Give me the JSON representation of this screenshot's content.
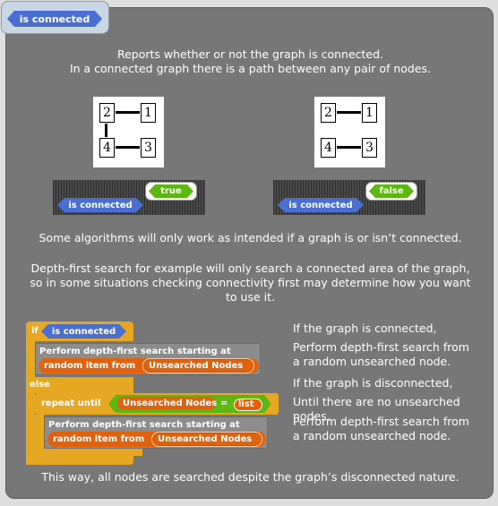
{
  "title_block": "is connected",
  "intro": {
    "line1": "Reports whether or not the graph is connected.",
    "line2": "In a connected graph there is a path between any pair of nodes."
  },
  "graph_left": {
    "n1": "1",
    "n2": "2",
    "n3": "3",
    "n4": "4"
  },
  "graph_right": {
    "n1": "1",
    "n2": "2",
    "n3": "3",
    "n4": "4"
  },
  "result_left": {
    "value": "true",
    "block": "is connected"
  },
  "result_right": {
    "value": "false",
    "block": "is connected"
  },
  "para1": "Some algorithms will only work as intended if a graph is or isn’t connected.",
  "para2": {
    "line1": "Depth-first search for example will only search a connected area of the graph,",
    "line2": "so in some situations checking connectivity first may determine how you want",
    "line3": "to use it."
  },
  "script": {
    "if_kw": "if",
    "cond": "is connected",
    "dfs1": "Perform depth-first search starting at",
    "random1": "random item from",
    "unsearched1": "Unsearched Nodes",
    "else_kw": "else",
    "repeat_kw": "repeat until",
    "unsearched_cmp": "Unsearched Nodes",
    "eq": "=",
    "list_kw": "list",
    "dfs2": "Perform depth-first search starting at",
    "random2": "random item from",
    "unsearched2": "Unsearched Nodes"
  },
  "notes": {
    "n1": "If the graph is connected,",
    "n2a": "Perform depth-first search from",
    "n2b": "a random unsearched node.",
    "n3": "If the graph is disconnected,",
    "n4": "Until there are no unsearched nodes,",
    "n5a": "Perform depth-first search from",
    "n5b": "a random unsearched node."
  },
  "closing": "This way, all nodes are searched despite the graph’s disconnected nature.",
  "colors": {
    "panel": "#777777",
    "predicate_blue": "#4a6fd2",
    "control_gold": "#e6a822",
    "variable_orange": "#e0620d",
    "operator_green": "#5cb712"
  }
}
